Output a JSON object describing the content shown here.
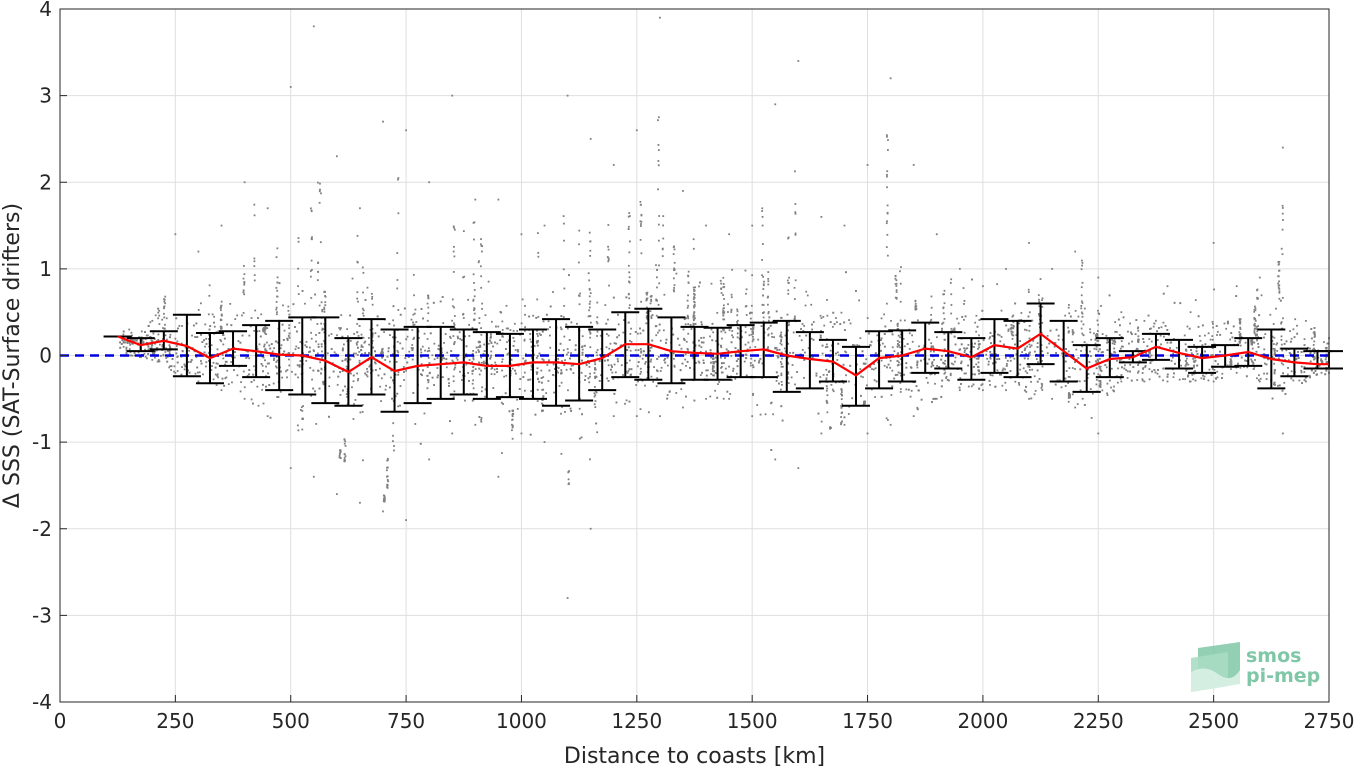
{
  "chart_data": {
    "type": "scatter",
    "title": "",
    "xlabel": "Distance to coasts [km]",
    "ylabel": "Δ SSS (SAT-Surface drifters)",
    "xlim": [
      0,
      2750
    ],
    "ylim": [
      -4,
      4
    ],
    "xticks": [
      0,
      250,
      500,
      750,
      1000,
      1250,
      1500,
      1750,
      2000,
      2250,
      2500,
      2750
    ],
    "yticks": [
      -4,
      -3,
      -2,
      -1,
      0,
      1,
      2,
      3,
      4
    ],
    "grid": true,
    "colors": {
      "scatter": "#808080",
      "mean_line": "#ff0000",
      "error_bars": "#000000",
      "zero_line": "#0000dd",
      "logo": "#7fc7a6"
    },
    "zero_line": {
      "y": 0,
      "style": "dashed"
    },
    "binned_stats": {
      "x": [
        125,
        175,
        225,
        275,
        325,
        375,
        425,
        475,
        525,
        575,
        625,
        675,
        725,
        775,
        825,
        875,
        925,
        975,
        1025,
        1075,
        1125,
        1175,
        1225,
        1275,
        1325,
        1375,
        1425,
        1475,
        1525,
        1575,
        1625,
        1675,
        1725,
        1775,
        1825,
        1875,
        1925,
        1975,
        2025,
        2075,
        2125,
        2175,
        2225,
        2275,
        2325,
        2375,
        2425,
        2475,
        2525,
        2575,
        2625,
        2675,
        2725,
        2750
      ],
      "mean": [
        0.22,
        0.12,
        0.17,
        0.11,
        -0.03,
        0.08,
        0.05,
        0.01,
        0.0,
        -0.06,
        -0.19,
        -0.02,
        -0.18,
        -0.12,
        -0.1,
        -0.08,
        -0.12,
        -0.12,
        -0.08,
        -0.08,
        -0.1,
        -0.03,
        0.13,
        0.13,
        0.05,
        0.03,
        0.02,
        0.05,
        0.07,
        0.0,
        -0.04,
        -0.07,
        -0.23,
        -0.03,
        0.0,
        0.08,
        0.05,
        -0.02,
        0.12,
        0.08,
        0.25,
        0.05,
        -0.15,
        -0.04,
        -0.02,
        0.1,
        0.03,
        -0.03,
        0.0,
        0.04,
        -0.04,
        -0.08,
        -0.1,
        -0.1
      ],
      "lower": [
        0.22,
        0.05,
        0.07,
        -0.24,
        -0.32,
        -0.12,
        -0.25,
        -0.4,
        -0.45,
        -0.55,
        -0.58,
        -0.45,
        -0.65,
        -0.55,
        -0.5,
        -0.45,
        -0.5,
        -0.48,
        -0.5,
        -0.58,
        -0.52,
        -0.4,
        -0.25,
        -0.28,
        -0.32,
        -0.28,
        -0.28,
        -0.25,
        -0.25,
        -0.42,
        -0.38,
        -0.3,
        -0.58,
        -0.38,
        -0.3,
        -0.2,
        -0.15,
        -0.28,
        -0.2,
        -0.25,
        -0.1,
        -0.3,
        -0.42,
        -0.25,
        -0.08,
        -0.05,
        -0.15,
        -0.2,
        -0.13,
        -0.12,
        -0.38,
        -0.24,
        -0.15,
        -0.15
      ],
      "upper": [
        0.22,
        0.2,
        0.28,
        0.47,
        0.26,
        0.28,
        0.35,
        0.4,
        0.44,
        0.44,
        0.2,
        0.42,
        0.3,
        0.33,
        0.33,
        0.3,
        0.27,
        0.25,
        0.3,
        0.42,
        0.33,
        0.3,
        0.5,
        0.54,
        0.44,
        0.33,
        0.32,
        0.35,
        0.38,
        0.4,
        0.27,
        0.18,
        0.1,
        0.28,
        0.29,
        0.38,
        0.27,
        0.2,
        0.42,
        0.4,
        0.6,
        0.4,
        0.12,
        0.2,
        0.05,
        0.25,
        0.18,
        0.1,
        0.12,
        0.2,
        0.3,
        0.08,
        0.05,
        0.05
      ]
    },
    "scatter_envelope": {
      "x": [
        150,
        200,
        250,
        300,
        350,
        400,
        450,
        500,
        550,
        600,
        650,
        700,
        750,
        800,
        850,
        900,
        950,
        1000,
        1050,
        1100,
        1150,
        1200,
        1250,
        1300,
        1350,
        1400,
        1450,
        1500,
        1550,
        1600,
        1650,
        1700,
        1750,
        1800,
        1850,
        1900,
        1950,
        2000,
        2050,
        2100,
        2150,
        2200,
        2250,
        2300,
        2350,
        2400,
        2450,
        2500,
        2550,
        2600,
        2650,
        2700,
        2750
      ],
      "low": [
        0.0,
        -0.05,
        -0.2,
        -0.3,
        -0.4,
        -0.5,
        -0.7,
        -1.3,
        -1.4,
        -1.6,
        -1.7,
        -1.8,
        -1.9,
        -1.2,
        -0.9,
        -0.8,
        -1.4,
        -0.9,
        -1.0,
        -2.8,
        -2.0,
        -0.7,
        -0.7,
        -0.7,
        -0.6,
        -0.5,
        -0.5,
        -0.7,
        -1.2,
        -1.3,
        -0.9,
        -0.8,
        -0.9,
        -0.8,
        -0.7,
        -0.5,
        -0.4,
        -0.4,
        -0.4,
        -0.5,
        -0.5,
        -0.6,
        -0.9,
        -0.3,
        -0.3,
        -0.3,
        -0.3,
        -0.3,
        -0.2,
        -0.3,
        -0.9,
        -0.3,
        -0.2
      ],
      "high": [
        0.3,
        0.4,
        1.4,
        1.2,
        1.5,
        2.0,
        1.7,
        3.1,
        3.8,
        2.3,
        1.7,
        2.7,
        2.6,
        2.0,
        3.0,
        1.8,
        1.8,
        1.4,
        1.5,
        3.0,
        2.5,
        2.2,
        2.6,
        3.9,
        1.9,
        1.5,
        1.4,
        1.5,
        2.9,
        3.4,
        1.6,
        1.5,
        2.2,
        3.2,
        2.2,
        1.4,
        1.0,
        0.8,
        1.0,
        1.3,
        1.0,
        1.2,
        0.9,
        0.5,
        0.4,
        0.8,
        0.5,
        1.3,
        0.8,
        0.9,
        2.4,
        0.4,
        0.2
      ]
    }
  },
  "logo": {
    "line1": "smos",
    "line2": "pi-mep"
  }
}
